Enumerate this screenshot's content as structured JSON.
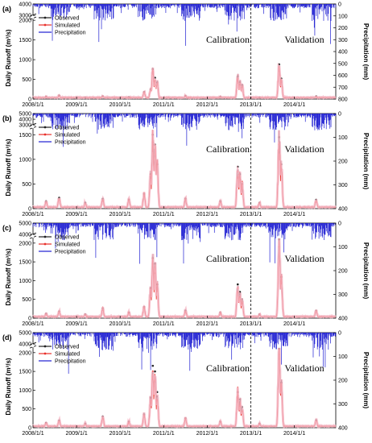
{
  "colors": {
    "observed": "#222222",
    "simulated": "#e8302a",
    "uncertainty": "#f5b7c4",
    "precipitation": "#1e1ed2"
  },
  "chart_data": [
    {
      "panel_label": "(a)",
      "type": "line",
      "ylabel": "Daily Runoff (m³/s)",
      "y2label": "Precipitation (mm)",
      "y_ticks_lower": [
        "0",
        "500",
        "1000",
        "1500",
        "2000"
      ],
      "y_ticks_upper": [
        "4000",
        "3000"
      ],
      "y_lower_range": [
        0,
        2000
      ],
      "y_upper_range": [
        3000,
        4000
      ],
      "y2_ticks": [
        "0",
        "100",
        "200",
        "300",
        "400",
        "500",
        "600",
        "700",
        "800"
      ],
      "y2_range": [
        0,
        800
      ],
      "x_ticks": [
        "2008/1/1",
        "2009/1/1",
        "2010/1/1",
        "2011/1/1",
        "2012/1/1",
        "2013/1/1",
        "2014/1/1"
      ],
      "legend": [
        "Observed",
        "Simulated",
        "Precipitation"
      ],
      "periods": [
        "Calibration",
        "Validation"
      ],
      "split_year": 2013,
      "observed_peaks": [
        [
          2008.3,
          60
        ],
        [
          2008.6,
          90
        ],
        [
          2009.2,
          40
        ],
        [
          2009.6,
          70
        ],
        [
          2010.2,
          50
        ],
        [
          2010.55,
          180
        ],
        [
          2010.7,
          250
        ],
        [
          2010.75,
          760
        ],
        [
          2010.8,
          540
        ],
        [
          2010.85,
          420
        ],
        [
          2011.5,
          80
        ],
        [
          2012.3,
          60
        ],
        [
          2012.7,
          580
        ],
        [
          2012.75,
          430
        ],
        [
          2012.8,
          360
        ],
        [
          2013.2,
          40
        ],
        [
          2013.65,
          880
        ],
        [
          2013.7,
          520
        ],
        [
          2014.5,
          70
        ]
      ],
      "simulated_peaks": [
        [
          2010.75,
          700
        ],
        [
          2010.8,
          480
        ],
        [
          2012.7,
          520
        ],
        [
          2013.65,
          820
        ],
        [
          2013.7,
          460
        ]
      ]
    },
    {
      "panel_label": "(b)",
      "type": "line",
      "ylabel": "Daily Runoff (m³/s)",
      "y2label": "Precipitation (mm)",
      "y_ticks_lower": [
        "0",
        "500",
        "1000",
        "1500"
      ],
      "y_ticks_upper": [
        "5000",
        "4000",
        "3000"
      ],
      "y_lower_range": [
        0,
        1600
      ],
      "y_upper_range": [
        3000,
        5000
      ],
      "y2_ticks": [
        "0",
        "100",
        "200",
        "300",
        "400"
      ],
      "y2_range": [
        0,
        400
      ],
      "x_ticks": [
        "2008/1/1",
        "2009/1/1",
        "2010/1/1",
        "2011/1/1",
        "2012/1/1",
        "2013/1/1",
        "2014/1/1"
      ],
      "legend": [
        "Observed",
        "Simulated",
        "Precipitation"
      ],
      "periods": [
        "Calibration",
        "Validation"
      ],
      "split_year": 2013,
      "observed_peaks": [
        [
          2008.3,
          150
        ],
        [
          2008.6,
          220
        ],
        [
          2009.2,
          120
        ],
        [
          2009.6,
          200
        ],
        [
          2010.2,
          180
        ],
        [
          2010.55,
          300
        ],
        [
          2010.7,
          700
        ],
        [
          2010.75,
          1500
        ],
        [
          2010.8,
          1300
        ],
        [
          2010.85,
          900
        ],
        [
          2011.5,
          200
        ],
        [
          2012.3,
          150
        ],
        [
          2012.7,
          850
        ],
        [
          2012.75,
          700
        ],
        [
          2012.8,
          500
        ],
        [
          2013.2,
          120
        ],
        [
          2013.65,
          1450
        ],
        [
          2013.7,
          900
        ],
        [
          2014.5,
          180
        ]
      ],
      "simulated_peaks": [
        [
          2010.75,
          1350
        ],
        [
          2010.8,
          1100
        ],
        [
          2012.7,
          750
        ],
        [
          2013.65,
          1300
        ],
        [
          2013.7,
          800
        ]
      ]
    },
    {
      "panel_label": "(c)",
      "type": "line",
      "ylabel": "Daily Runoff (m³/s)",
      "y2label": "Precipitation (mm)",
      "y_ticks_lower": [
        "0",
        "500",
        "1000",
        "1500",
        "2000"
      ],
      "y_ticks_upper": [
        "5000",
        "4000"
      ],
      "y_lower_range": [
        0,
        2100
      ],
      "y_upper_range": [
        4000,
        5000
      ],
      "y2_ticks": [
        "0",
        "100",
        "200",
        "300",
        "400"
      ],
      "y2_range": [
        0,
        400
      ],
      "x_ticks": [
        "2008/1/1",
        "2009/1/1",
        "2010/1/1",
        "2011/1/1",
        "2012/1/1",
        "2013/1/1",
        "2014/1/1"
      ],
      "legend": [
        "Observed",
        "Simulated",
        "Precipitation"
      ],
      "periods": [
        "Calibration",
        "Validation"
      ],
      "split_year": 2013,
      "observed_peaks": [
        [
          2008.3,
          120
        ],
        [
          2008.6,
          180
        ],
        [
          2009.2,
          100
        ],
        [
          2009.6,
          260
        ],
        [
          2010.2,
          150
        ],
        [
          2010.55,
          300
        ],
        [
          2010.7,
          800
        ],
        [
          2010.75,
          1600
        ],
        [
          2010.8,
          1450
        ],
        [
          2010.85,
          900
        ],
        [
          2011.5,
          200
        ],
        [
          2012.3,
          150
        ],
        [
          2012.7,
          900
        ],
        [
          2012.75,
          700
        ],
        [
          2012.8,
          500
        ],
        [
          2013.2,
          100
        ],
        [
          2013.65,
          2100
        ],
        [
          2013.7,
          1100
        ],
        [
          2014.5,
          200
        ]
      ],
      "simulated_peaks": [
        [
          2010.75,
          1450
        ],
        [
          2010.8,
          1200
        ],
        [
          2012.7,
          800
        ],
        [
          2013.65,
          1900
        ],
        [
          2013.7,
          950
        ]
      ]
    },
    {
      "panel_label": "(d)",
      "type": "line",
      "ylabel": "Daily Runoff (m³/s)",
      "y2label": "Precipitation (mm)",
      "y_ticks_lower": [
        "0",
        "500",
        "1000",
        "1500",
        "2000"
      ],
      "y_ticks_upper": [
        "5000",
        "4000"
      ],
      "y_lower_range": [
        0,
        2100
      ],
      "y_upper_range": [
        4000,
        5000
      ],
      "y2_ticks": [
        "0",
        "100",
        "200",
        "300",
        "400"
      ],
      "y2_range": [
        0,
        400
      ],
      "x_ticks": [
        "2008/1/1",
        "2009/1/1",
        "2010/1/1",
        "2011/1/1",
        "2012/1/1",
        "2013/1/1",
        "2014/1/1"
      ],
      "legend": [
        "Observed",
        "Simulated",
        "Precipitation"
      ],
      "periods": [
        "Calibration",
        "Validation"
      ],
      "split_year": 2013,
      "observed_peaks": [
        [
          2008.3,
          130
        ],
        [
          2008.6,
          190
        ],
        [
          2009.2,
          110
        ],
        [
          2009.6,
          300
        ],
        [
          2010.2,
          160
        ],
        [
          2010.55,
          350
        ],
        [
          2010.7,
          800
        ],
        [
          2010.75,
          1650
        ],
        [
          2010.8,
          1500
        ],
        [
          2010.85,
          950
        ],
        [
          2011.5,
          250
        ],
        [
          2012.3,
          160
        ],
        [
          2012.7,
          950
        ],
        [
          2012.75,
          750
        ],
        [
          2012.8,
          550
        ],
        [
          2013.2,
          110
        ],
        [
          2013.65,
          2150
        ],
        [
          2013.7,
          1200
        ],
        [
          2014.5,
          200
        ]
      ],
      "simulated_peaks": [
        [
          2010.75,
          1500
        ],
        [
          2010.8,
          1250
        ],
        [
          2012.7,
          850
        ],
        [
          2013.65,
          1950
        ],
        [
          2013.7,
          1000
        ]
      ]
    }
  ]
}
